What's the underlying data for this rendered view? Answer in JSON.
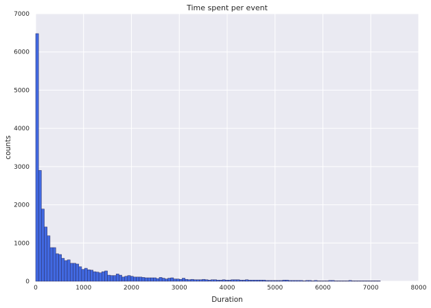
{
  "chart_data": {
    "type": "bar",
    "title": "Time spent per event",
    "xlabel": "Duration",
    "ylabel": "counts",
    "xlim": [
      0,
      8000
    ],
    "ylim": [
      0,
      7000
    ],
    "x_ticks": [
      "0",
      "1000",
      "2000",
      "3000",
      "4000",
      "5000",
      "6000",
      "7000",
      "8000"
    ],
    "y_ticks": [
      "0",
      "1000",
      "2000",
      "3000",
      "4000",
      "5000",
      "6000",
      "7000"
    ],
    "grid": true,
    "bin_width": 60,
    "bin_start": 0,
    "values": [
      6480,
      2900,
      1890,
      1420,
      1190,
      880,
      880,
      720,
      700,
      600,
      540,
      560,
      470,
      470,
      450,
      380,
      310,
      340,
      300,
      290,
      250,
      240,
      220,
      250,
      270,
      160,
      150,
      150,
      190,
      160,
      110,
      130,
      150,
      130,
      110,
      110,
      110,
      100,
      90,
      90,
      90,
      90,
      70,
      100,
      80,
      60,
      80,
      90,
      60,
      60,
      50,
      80,
      50,
      40,
      50,
      40,
      40,
      40,
      50,
      40,
      30,
      40,
      40,
      30,
      30,
      40,
      30,
      30,
      40,
      40,
      40,
      30,
      30,
      40,
      30,
      30,
      30,
      30,
      30,
      30,
      20,
      20,
      20,
      20,
      20,
      20,
      30,
      30,
      20,
      20,
      20,
      20,
      20,
      10,
      20,
      20,
      10,
      20,
      10,
      10,
      10,
      10,
      20,
      20,
      10,
      10,
      10,
      10,
      10,
      20,
      10,
      10,
      10,
      10,
      10,
      10,
      10,
      10,
      10,
      10
    ],
    "colors": {
      "bar": "#4169e1",
      "bar_edge": "#2a2a5a",
      "plot_bg": "#eaeaf2",
      "grid": "#ffffff"
    }
  }
}
